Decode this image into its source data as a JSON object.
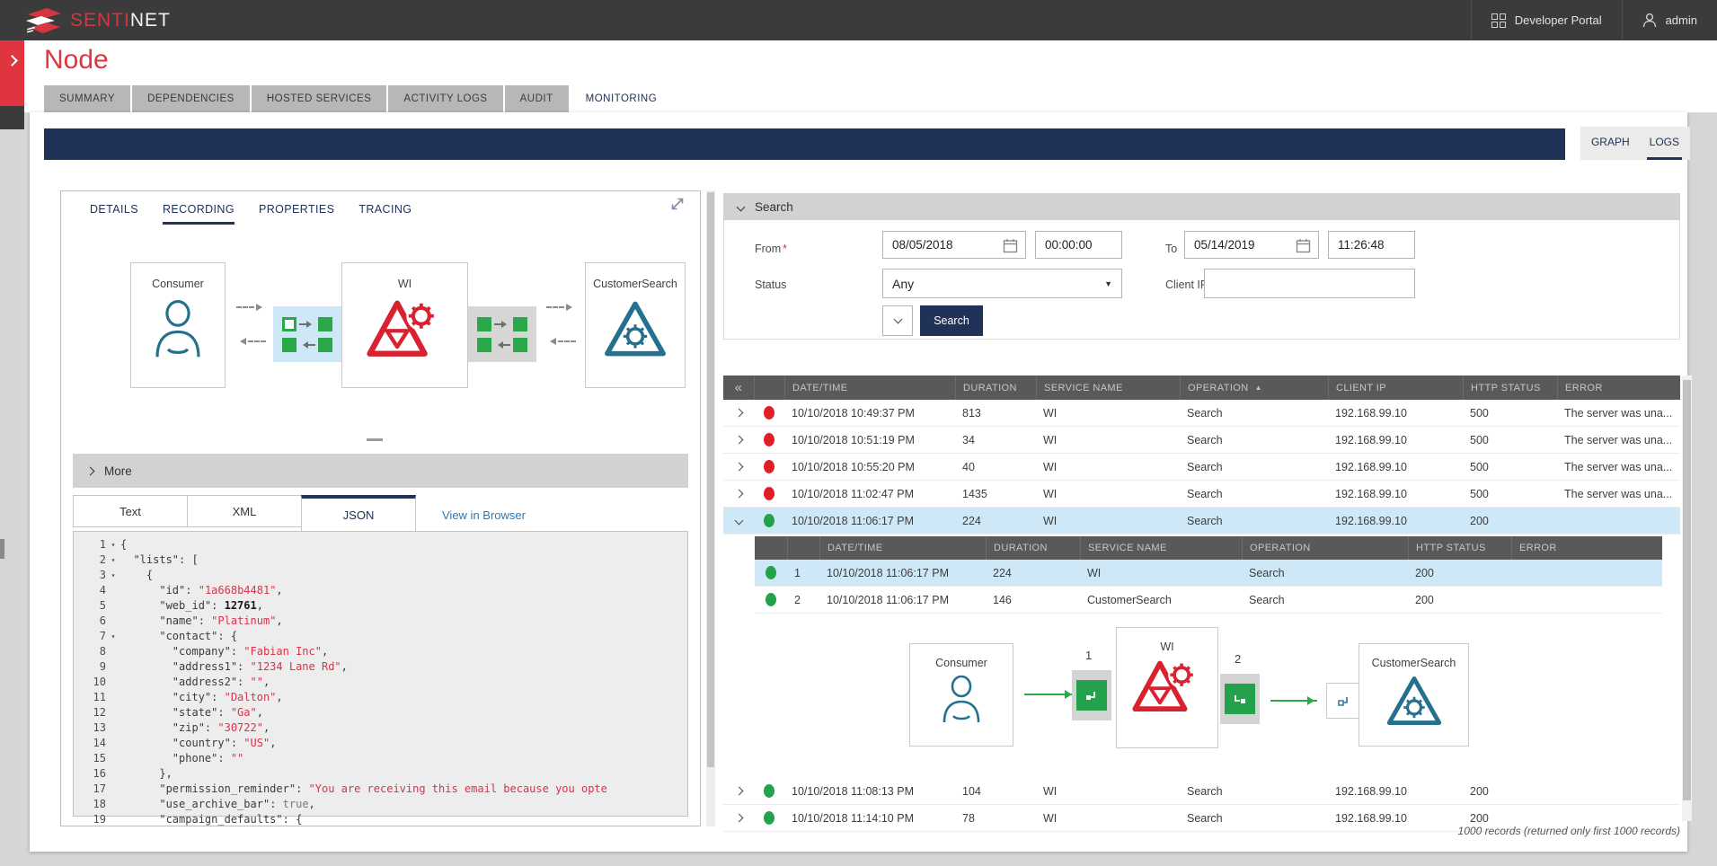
{
  "colors": {
    "accent_red": "#e0353f",
    "navy": "#203258",
    "green": "#2aa84a",
    "teal": "#25708e",
    "status_red": "#e01e26",
    "status_green": "#23a14b",
    "selected_row": "#cfe8f7"
  },
  "topbar": {
    "brand_senti": "SENTI",
    "brand_net": "NET",
    "developer_portal": "Developer Portal",
    "user": "admin"
  },
  "page": {
    "title": "Node"
  },
  "main_tabs": [
    {
      "label": "SUMMARY",
      "active": false
    },
    {
      "label": "DEPENDENCIES",
      "active": false
    },
    {
      "label": "HOSTED SERVICES",
      "active": false
    },
    {
      "label": "ACTIVITY LOGS",
      "active": false
    },
    {
      "label": "AUDIT",
      "active": false
    },
    {
      "label": "MONITORING",
      "active": true
    }
  ],
  "view_switch": {
    "graph": "GRAPH",
    "logs": "LOGS",
    "active": "LOGS"
  },
  "left_panel": {
    "tabs": [
      {
        "label": "DETAILS",
        "active": false
      },
      {
        "label": "RECORDING",
        "active": true
      },
      {
        "label": "PROPERTIES",
        "active": false
      },
      {
        "label": "TRACING",
        "active": false
      }
    ],
    "diagram": {
      "nodes": [
        {
          "label": "Consumer"
        },
        {
          "label": "WI"
        },
        {
          "label": "CustomerSearch"
        }
      ]
    },
    "more_label": "More",
    "content_tabs": [
      {
        "label": "Text",
        "active": false
      },
      {
        "label": "XML",
        "active": false
      },
      {
        "label": "JSON",
        "active": true
      }
    ],
    "view_in_browser": "View in Browser",
    "code_lines": [
      {
        "n": "1",
        "fold": true,
        "segs": [
          [
            "{",
            "pl"
          ]
        ]
      },
      {
        "n": "2",
        "fold": true,
        "segs": [
          [
            "  ",
            "pl"
          ],
          [
            "\"lists\"",
            "key"
          ],
          [
            ": [",
            "pl"
          ]
        ]
      },
      {
        "n": "3",
        "fold": true,
        "segs": [
          [
            "    ",
            "pl"
          ],
          [
            "{",
            "pl"
          ]
        ]
      },
      {
        "n": "4",
        "fold": false,
        "segs": [
          [
            "      ",
            "pl"
          ],
          [
            "\"id\"",
            "key"
          ],
          [
            ": ",
            "pl"
          ],
          [
            "\"1a668b4481\"",
            "str"
          ],
          [
            ",",
            "pl"
          ]
        ]
      },
      {
        "n": "5",
        "fold": false,
        "segs": [
          [
            "      ",
            "pl"
          ],
          [
            "\"web_id\"",
            "key"
          ],
          [
            ": ",
            "pl"
          ],
          [
            "12761",
            "num"
          ],
          [
            ",",
            "pl"
          ]
        ]
      },
      {
        "n": "6",
        "fold": false,
        "segs": [
          [
            "      ",
            "pl"
          ],
          [
            "\"name\"",
            "key"
          ],
          [
            ": ",
            "pl"
          ],
          [
            "\"Platinum\"",
            "str"
          ],
          [
            ",",
            "pl"
          ]
        ]
      },
      {
        "n": "7",
        "fold": true,
        "segs": [
          [
            "      ",
            "pl"
          ],
          [
            "\"contact\"",
            "key"
          ],
          [
            ": {",
            "pl"
          ]
        ]
      },
      {
        "n": "8",
        "fold": false,
        "segs": [
          [
            "        ",
            "pl"
          ],
          [
            "\"company\"",
            "key"
          ],
          [
            ": ",
            "pl"
          ],
          [
            "\"Fabian Inc\"",
            "str"
          ],
          [
            ",",
            "pl"
          ]
        ]
      },
      {
        "n": "9",
        "fold": false,
        "segs": [
          [
            "        ",
            "pl"
          ],
          [
            "\"address1\"",
            "key"
          ],
          [
            ": ",
            "pl"
          ],
          [
            "\"1234 Lane Rd\"",
            "str"
          ],
          [
            ",",
            "pl"
          ]
        ]
      },
      {
        "n": "10",
        "fold": false,
        "segs": [
          [
            "        ",
            "pl"
          ],
          [
            "\"address2\"",
            "key"
          ],
          [
            ": ",
            "pl"
          ],
          [
            "\"\"",
            "str"
          ],
          [
            ",",
            "pl"
          ]
        ]
      },
      {
        "n": "11",
        "fold": false,
        "segs": [
          [
            "        ",
            "pl"
          ],
          [
            "\"city\"",
            "key"
          ],
          [
            ": ",
            "pl"
          ],
          [
            "\"Dalton\"",
            "str"
          ],
          [
            ",",
            "pl"
          ]
        ]
      },
      {
        "n": "12",
        "fold": false,
        "segs": [
          [
            "        ",
            "pl"
          ],
          [
            "\"state\"",
            "key"
          ],
          [
            ": ",
            "pl"
          ],
          [
            "\"Ga\"",
            "str"
          ],
          [
            ",",
            "pl"
          ]
        ]
      },
      {
        "n": "13",
        "fold": false,
        "segs": [
          [
            "        ",
            "pl"
          ],
          [
            "\"zip\"",
            "key"
          ],
          [
            ": ",
            "pl"
          ],
          [
            "\"30722\"",
            "str"
          ],
          [
            ",",
            "pl"
          ]
        ]
      },
      {
        "n": "14",
        "fold": false,
        "segs": [
          [
            "        ",
            "pl"
          ],
          [
            "\"country\"",
            "key"
          ],
          [
            ": ",
            "pl"
          ],
          [
            "\"US\"",
            "str"
          ],
          [
            ",",
            "pl"
          ]
        ]
      },
      {
        "n": "15",
        "fold": false,
        "segs": [
          [
            "        ",
            "pl"
          ],
          [
            "\"phone\"",
            "key"
          ],
          [
            ": ",
            "pl"
          ],
          [
            "\"\"",
            "str"
          ]
        ]
      },
      {
        "n": "16",
        "fold": false,
        "segs": [
          [
            "      },",
            "pl"
          ]
        ]
      },
      {
        "n": "17",
        "fold": false,
        "segs": [
          [
            "      ",
            "pl"
          ],
          [
            "\"permission_reminder\"",
            "key"
          ],
          [
            ": ",
            "pl"
          ],
          [
            "\"You are receiving this email because you opte",
            "str"
          ]
        ]
      },
      {
        "n": "18",
        "fold": false,
        "segs": [
          [
            "      ",
            "pl"
          ],
          [
            "\"use_archive_bar\"",
            "key"
          ],
          [
            ": ",
            "pl"
          ],
          [
            "true",
            "bool"
          ],
          [
            ",",
            "pl"
          ]
        ]
      },
      {
        "n": "19",
        "fold": false,
        "segs": [
          [
            "      ",
            "pl"
          ],
          [
            "\"campaign_defaults\"",
            "key"
          ],
          [
            ": {",
            "pl"
          ]
        ]
      }
    ]
  },
  "search": {
    "title": "Search",
    "from_label": "From",
    "required_mark": "*",
    "from_date": "08/05/2018",
    "from_time": "00:00:00",
    "to_label": "To",
    "to_date": "05/14/2019",
    "to_time": "11:26:48",
    "status_label": "Status",
    "status_value": "Any",
    "client_ip_label": "Client IP",
    "client_ip_value": "",
    "search_button": "Search"
  },
  "log_table": {
    "headers": [
      "DATE/TIME",
      "DURATION",
      "SERVICE NAME",
      "OPERATION",
      "CLIENT IP",
      "HTTP STATUS",
      "ERROR"
    ],
    "sort_column": "OPERATION",
    "rows_top": [
      {
        "status": "red",
        "expanded": false,
        "selected": false,
        "date_time": "10/10/2018 10:49:37 PM",
        "duration": "813",
        "service": "WI",
        "operation": "Search",
        "client_ip": "192.168.99.10",
        "http_status": "500",
        "error": "The server was una..."
      },
      {
        "status": "red",
        "expanded": false,
        "selected": false,
        "date_time": "10/10/2018 10:51:19 PM",
        "duration": "34",
        "service": "WI",
        "operation": "Search",
        "client_ip": "192.168.99.10",
        "http_status": "500",
        "error": "The server was una..."
      },
      {
        "status": "red",
        "expanded": false,
        "selected": false,
        "date_time": "10/10/2018 10:55:20 PM",
        "duration": "40",
        "service": "WI",
        "operation": "Search",
        "client_ip": "192.168.99.10",
        "http_status": "500",
        "error": "The server was una..."
      },
      {
        "status": "red",
        "expanded": false,
        "selected": false,
        "date_time": "10/10/2018 11:02:47 PM",
        "duration": "1435",
        "service": "WI",
        "operation": "Search",
        "client_ip": "192.168.99.10",
        "http_status": "500",
        "error": "The server was una..."
      },
      {
        "status": "green",
        "expanded": true,
        "selected": true,
        "date_time": "10/10/2018 11:06:17 PM",
        "duration": "224",
        "service": "WI",
        "operation": "Search",
        "client_ip": "192.168.99.10",
        "http_status": "200",
        "error": ""
      }
    ],
    "rows_bottom": [
      {
        "status": "green",
        "expanded": false,
        "selected": false,
        "date_time": "10/10/2018 11:08:13 PM",
        "duration": "104",
        "service": "WI",
        "operation": "Search",
        "client_ip": "192.168.99.10",
        "http_status": "200",
        "error": ""
      },
      {
        "status": "green",
        "expanded": false,
        "selected": false,
        "date_time": "10/10/2018 11:14:10 PM",
        "duration": "78",
        "service": "WI",
        "operation": "Search",
        "client_ip": "192.168.99.10",
        "http_status": "200",
        "error": ""
      }
    ],
    "footer": "1000 records (returned only first 1000 records)"
  },
  "nested_table": {
    "headers": [
      "DATE/TIME",
      "DURATION",
      "SERVICE NAME",
      "OPERATION",
      "HTTP STATUS",
      "ERROR"
    ],
    "rows": [
      {
        "num": "1",
        "status": "green",
        "selected": true,
        "date_time": "10/10/2018 11:06:17 PM",
        "duration": "224",
        "service": "WI",
        "operation": "Search",
        "http_status": "200",
        "error": ""
      },
      {
        "num": "2",
        "status": "green",
        "selected": false,
        "date_time": "10/10/2018 11:06:17 PM",
        "duration": "146",
        "service": "CustomerSearch",
        "operation": "Search",
        "http_status": "200",
        "error": ""
      }
    ]
  },
  "nested_diagram": {
    "nodes": [
      {
        "label": "Consumer"
      },
      {
        "label": "WI"
      },
      {
        "label": "CustomerSearch"
      }
    ],
    "steps": [
      "1",
      "2"
    ]
  }
}
